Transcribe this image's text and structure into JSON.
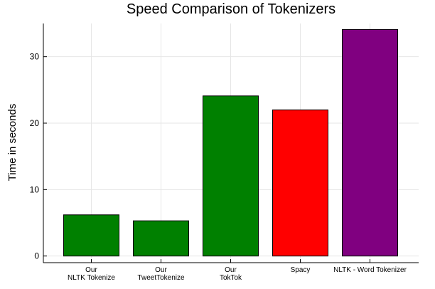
{
  "chart_data": {
    "type": "bar",
    "title": "Speed Comparison of Tokenizers",
    "xlabel": "",
    "ylabel": "Time in seconds",
    "ylim": [
      -1,
      35
    ],
    "yticks": [
      0,
      10,
      20,
      30
    ],
    "grid": true,
    "legend": "none",
    "categories": [
      [
        "Our",
        "NLTK Tokenize"
      ],
      [
        "Our",
        "TweetTokenize"
      ],
      [
        "Our",
        "TokTok"
      ],
      [
        "Spacy"
      ],
      [
        "NLTK - Word Tokenizer"
      ]
    ],
    "values": [
      6.2,
      5.3,
      24.1,
      22.0,
      34.1
    ],
    "colors": [
      "#008000",
      "#008000",
      "#008000",
      "#ff0000",
      "#800080"
    ]
  }
}
